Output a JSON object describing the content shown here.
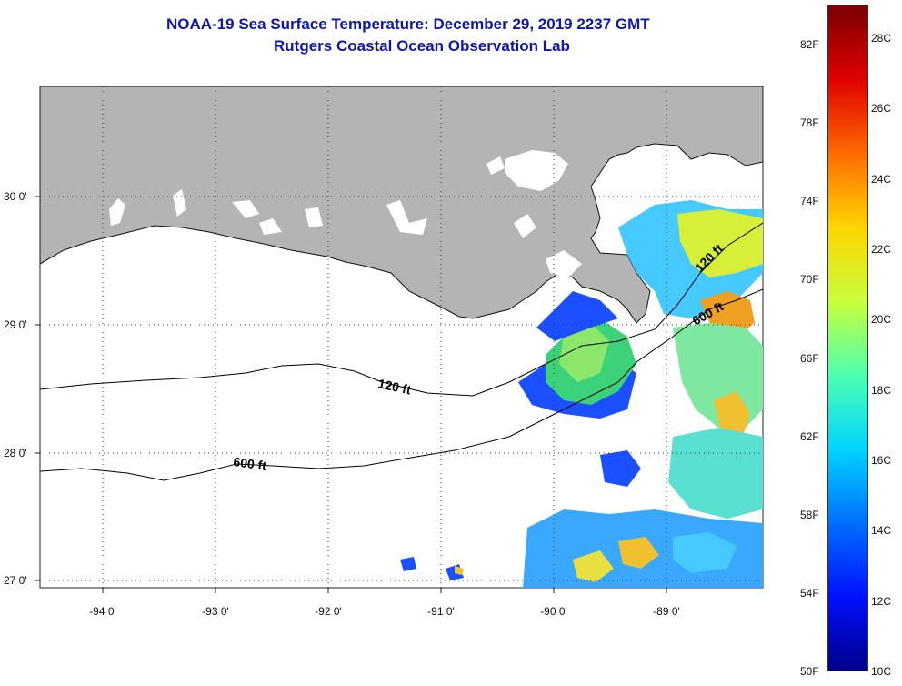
{
  "title": {
    "line1": "NOAA-19 Sea Surface Temperature:  December 29, 2019 2237 GMT",
    "line2": "Rutgers Coastal Ocean Observation Lab"
  },
  "map": {
    "lat_labels": [
      "30 0'",
      "29 0'",
      "28 0'",
      "27 0'"
    ],
    "lon_labels": [
      "-94 0'",
      "-93 0'",
      "-92 0'",
      "-91 0'",
      "-90 0'",
      "-89 0'"
    ],
    "contour_labels": {
      "inner_120": "120 ft",
      "outer_600": "600 ft",
      "east_120": "120 ft",
      "east_600": "600 ft"
    },
    "land_color": "#b4b4b4"
  },
  "colorbar": {
    "fahrenheit": [
      "82F",
      "78F",
      "74F",
      "70F",
      "66F",
      "62F",
      "58F",
      "54F",
      "50F"
    ],
    "celsius": [
      "28C",
      "26C",
      "24C",
      "22C",
      "20C",
      "18C",
      "16C",
      "14C",
      "12C",
      "10C"
    ],
    "colors": [
      "#7a0000",
      "#e00000",
      "#ff6a00",
      "#ffd400",
      "#c8ff3a",
      "#4dffb0",
      "#00d4ff",
      "#0070ff",
      "#0010ff",
      "#00008a"
    ]
  }
}
